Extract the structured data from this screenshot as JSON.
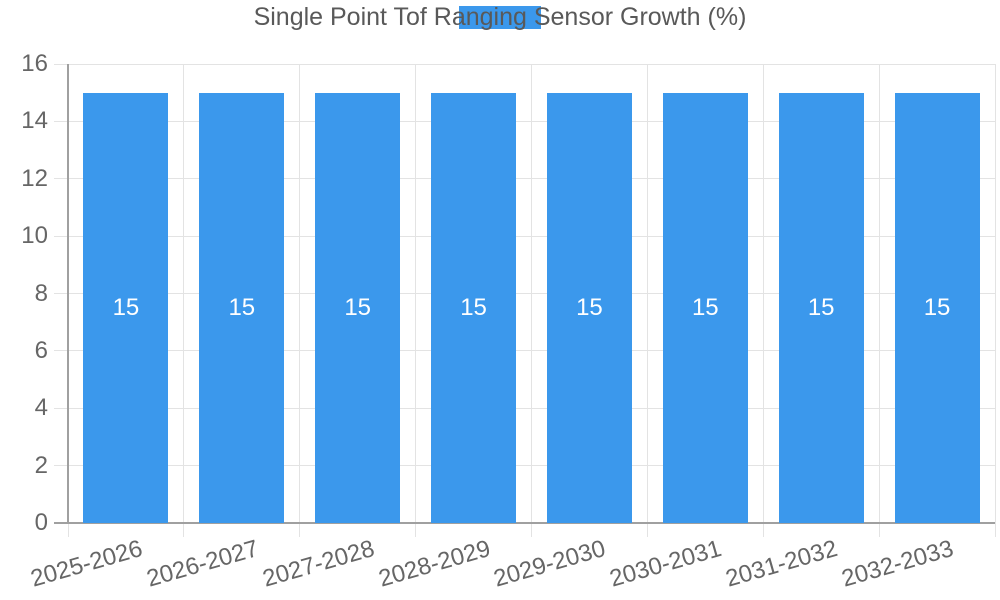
{
  "legend": {
    "label": "Single Point Tof Ranging Sensor Growth (%)"
  },
  "chart_data": {
    "type": "bar",
    "title": "",
    "xlabel": "",
    "ylabel": "",
    "categories": [
      "2025-2026",
      "2026-2027",
      "2027-2028",
      "2028-2029",
      "2029-2030",
      "2030-2031",
      "2031-2032",
      "2032-2033"
    ],
    "series": [
      {
        "name": "Single Point Tof Ranging Sensor Growth (%)",
        "values": [
          15,
          15,
          15,
          15,
          15,
          15,
          15,
          15
        ]
      }
    ],
    "bar_value_labels": [
      "15",
      "15",
      "15",
      "15",
      "15",
      "15",
      "15",
      "15"
    ],
    "ylim": [
      0,
      16
    ],
    "yticks": [
      0,
      2,
      4,
      6,
      8,
      10,
      12,
      14,
      16
    ],
    "grid": true,
    "legend_position": "top",
    "xtick_rotation_deg": -16,
    "colors": {
      "bar": "#3B98EC",
      "grid": "#E3E3E3",
      "axis": "#A0A0A0",
      "tick_text": "#666666",
      "legend_text": "#595959",
      "value_label": "#FFFFFF",
      "background": "#FFFFFF"
    }
  }
}
